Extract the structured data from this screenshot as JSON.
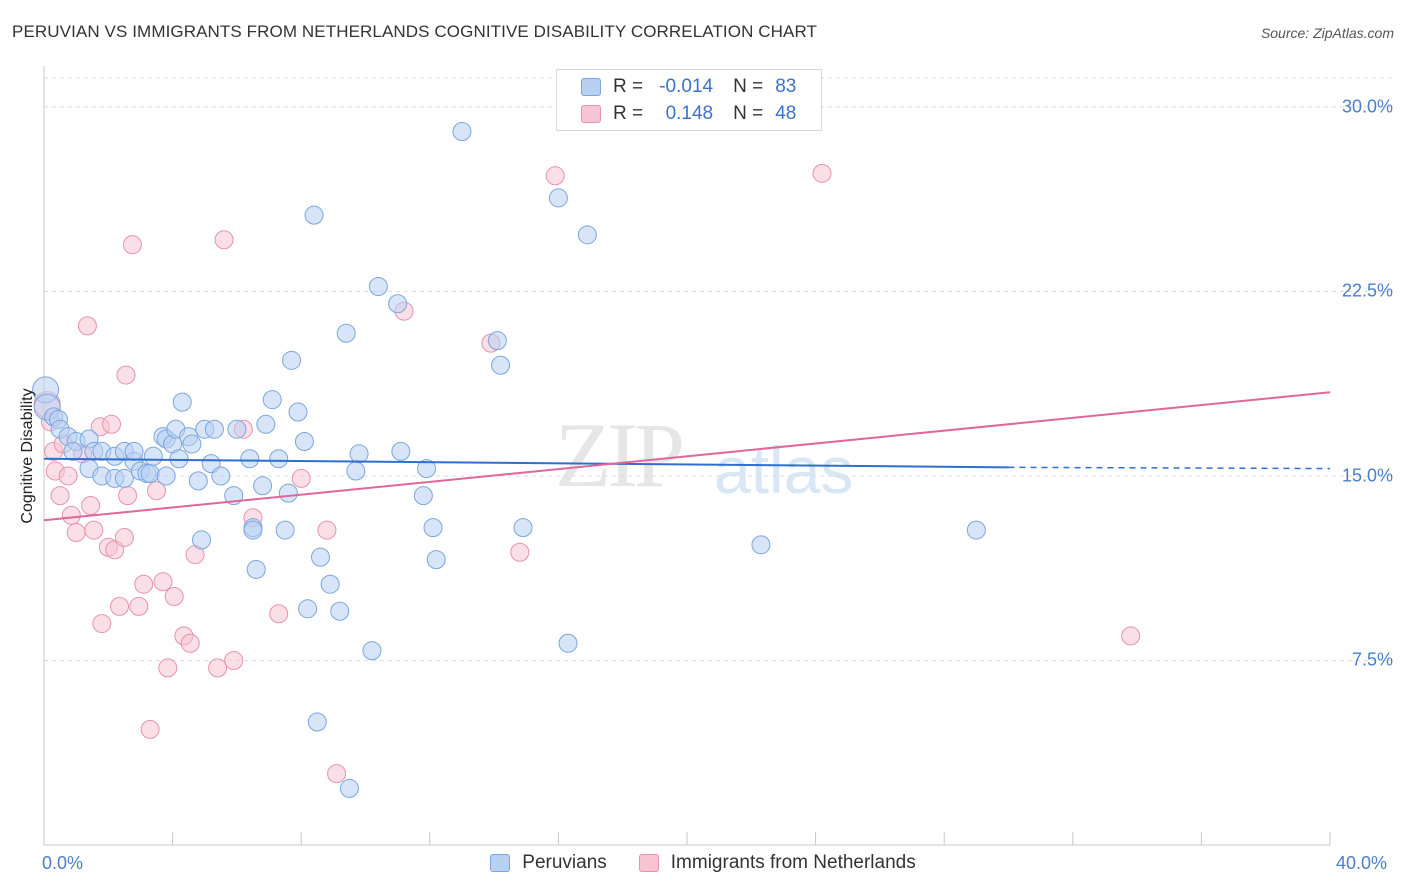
{
  "title": "PERUVIAN VS IMMIGRANTS FROM NETHERLANDS COGNITIVE DISABILITY CORRELATION CHART",
  "source": "Source: ZipAtlas.com",
  "watermark": {
    "part1": "ZIP",
    "part2": "atlas"
  },
  "legend_top": {
    "r_label": "R =",
    "n_label": "N =",
    "rows": [
      {
        "name": "Peruvians",
        "r": "-0.014",
        "n": "83"
      },
      {
        "name": "Immigrants from Netherlands",
        "r": "0.148",
        "n": "48"
      }
    ]
  },
  "legend_bottom": [
    "Peruvians",
    "Immigrants from Netherlands"
  ],
  "colors": {
    "blue_fill": "#b8d0f2",
    "blue_stroke": "#7ba6dd",
    "blue_line": "#2f6fcf",
    "pink_fill": "#f6c4d3",
    "pink_stroke": "#e892ae",
    "pink_line": "#e0679a",
    "tick_text": "#4a7fc8",
    "grid": "#dcdcdc"
  },
  "chart_data": {
    "type": "scatter",
    "title": "PERUVIAN VS IMMIGRANTS FROM NETHERLANDS COGNITIVE DISABILITY CORRELATION CHART",
    "xlabel": "",
    "ylabel": "Cognitive Disability",
    "xlim": [
      0,
      40
    ],
    "ylim": [
      0,
      31.5
    ],
    "x_tick_labels": [
      {
        "value": 0,
        "label": "0.0%"
      },
      {
        "value": 40,
        "label": "40.0%"
      }
    ],
    "y_ticks": [
      {
        "value": 7.5,
        "label": "7.5%"
      },
      {
        "value": 15.0,
        "label": "15.0%"
      },
      {
        "value": 22.5,
        "label": "22.5%"
      },
      {
        "value": 30.0,
        "label": "30.0%"
      }
    ],
    "x_minor_ticks": [
      4,
      8,
      12,
      16,
      20,
      24,
      28,
      32,
      36,
      40
    ],
    "series": [
      {
        "name": "Peruvians",
        "r": -0.014,
        "n": 83,
        "trend": {
          "x0": 0.0,
          "y0": 15.7,
          "x1": 30.0,
          "y1": 15.35,
          "dash_to_x": 40.0,
          "dash_y": 15.3
        },
        "points": [
          [
            0.05,
            18.5
          ],
          [
            0.1,
            17.8
          ],
          [
            0.3,
            17.4
          ],
          [
            0.45,
            17.3
          ],
          [
            0.5,
            16.9
          ],
          [
            0.75,
            16.6
          ],
          [
            1.0,
            16.4
          ],
          [
            0.9,
            16.0
          ],
          [
            1.4,
            16.5
          ],
          [
            1.55,
            16.0
          ],
          [
            1.4,
            15.3
          ],
          [
            1.8,
            15.0
          ],
          [
            1.8,
            16.0
          ],
          [
            2.2,
            15.8
          ],
          [
            2.2,
            14.9
          ],
          [
            2.5,
            16.0
          ],
          [
            2.5,
            14.9
          ],
          [
            2.8,
            15.6
          ],
          [
            2.8,
            16.0
          ],
          [
            3.0,
            15.2
          ],
          [
            3.2,
            15.1
          ],
          [
            3.3,
            15.1
          ],
          [
            3.4,
            15.8
          ],
          [
            3.7,
            16.6
          ],
          [
            3.8,
            16.5
          ],
          [
            3.8,
            15.0
          ],
          [
            4.0,
            16.3
          ],
          [
            4.1,
            16.9
          ],
          [
            4.2,
            15.7
          ],
          [
            4.3,
            18.0
          ],
          [
            4.5,
            16.6
          ],
          [
            4.6,
            16.3
          ],
          [
            4.8,
            14.8
          ],
          [
            4.9,
            12.4
          ],
          [
            5.0,
            16.9
          ],
          [
            5.2,
            15.5
          ],
          [
            5.3,
            16.9
          ],
          [
            5.5,
            15.0
          ],
          [
            5.9,
            14.2
          ],
          [
            6.0,
            16.9
          ],
          [
            6.4,
            15.7
          ],
          [
            6.5,
            12.9
          ],
          [
            6.5,
            12.8
          ],
          [
            6.6,
            11.2
          ],
          [
            6.8,
            14.6
          ],
          [
            6.9,
            17.1
          ],
          [
            7.1,
            18.1
          ],
          [
            7.3,
            15.7
          ],
          [
            7.5,
            12.8
          ],
          [
            7.6,
            14.3
          ],
          [
            7.7,
            19.7
          ],
          [
            7.9,
            17.6
          ],
          [
            8.1,
            16.4
          ],
          [
            8.2,
            9.6
          ],
          [
            8.4,
            25.6
          ],
          [
            8.5,
            5.0
          ],
          [
            8.6,
            11.7
          ],
          [
            8.9,
            10.6
          ],
          [
            9.2,
            9.5
          ],
          [
            9.4,
            20.8
          ],
          [
            9.5,
            2.3
          ],
          [
            9.7,
            15.2
          ],
          [
            9.8,
            15.9
          ],
          [
            10.2,
            7.9
          ],
          [
            10.4,
            22.7
          ],
          [
            11.0,
            22.0
          ],
          [
            11.1,
            16.0
          ],
          [
            11.8,
            14.2
          ],
          [
            11.9,
            15.3
          ],
          [
            12.1,
            12.9
          ],
          [
            12.2,
            11.6
          ],
          [
            13.0,
            29.0
          ],
          [
            14.1,
            20.5
          ],
          [
            14.2,
            19.5
          ],
          [
            14.9,
            12.9
          ],
          [
            16.0,
            26.3
          ],
          [
            16.3,
            8.2
          ],
          [
            16.9,
            24.8
          ],
          [
            22.3,
            12.2
          ],
          [
            29.0,
            12.8
          ]
        ]
      },
      {
        "name": "Immigrants from Netherlands",
        "r": 0.148,
        "n": 48,
        "trend": {
          "x0": 0.0,
          "y0": 13.2,
          "x1": 40.0,
          "y1": 18.4
        },
        "points": [
          [
            0.1,
            17.9
          ],
          [
            0.2,
            17.2
          ],
          [
            0.3,
            16.0
          ],
          [
            0.35,
            15.2
          ],
          [
            0.5,
            14.2
          ],
          [
            0.6,
            16.3
          ],
          [
            0.75,
            15.0
          ],
          [
            0.85,
            13.4
          ],
          [
            1.0,
            12.7
          ],
          [
            1.2,
            15.9
          ],
          [
            1.35,
            21.1
          ],
          [
            1.45,
            13.8
          ],
          [
            1.55,
            12.8
          ],
          [
            1.75,
            17.0
          ],
          [
            1.8,
            9.0
          ],
          [
            2.0,
            12.1
          ],
          [
            2.1,
            17.1
          ],
          [
            2.2,
            12.0
          ],
          [
            2.35,
            9.7
          ],
          [
            2.5,
            12.5
          ],
          [
            2.55,
            19.1
          ],
          [
            2.6,
            14.2
          ],
          [
            2.75,
            24.4
          ],
          [
            2.95,
            9.7
          ],
          [
            3.1,
            10.6
          ],
          [
            3.3,
            4.7
          ],
          [
            3.5,
            14.4
          ],
          [
            3.7,
            10.7
          ],
          [
            3.85,
            7.2
          ],
          [
            4.05,
            10.1
          ],
          [
            4.35,
            8.5
          ],
          [
            4.55,
            8.2
          ],
          [
            4.7,
            11.8
          ],
          [
            5.4,
            7.2
          ],
          [
            5.6,
            24.6
          ],
          [
            5.9,
            7.5
          ],
          [
            6.2,
            16.9
          ],
          [
            6.5,
            13.3
          ],
          [
            7.3,
            9.4
          ],
          [
            8.0,
            14.9
          ],
          [
            8.8,
            12.8
          ],
          [
            9.1,
            2.9
          ],
          [
            11.2,
            21.7
          ],
          [
            13.9,
            20.4
          ],
          [
            14.8,
            11.9
          ],
          [
            15.9,
            27.2
          ],
          [
            24.2,
            27.3
          ],
          [
            33.8,
            8.5
          ]
        ]
      }
    ]
  }
}
